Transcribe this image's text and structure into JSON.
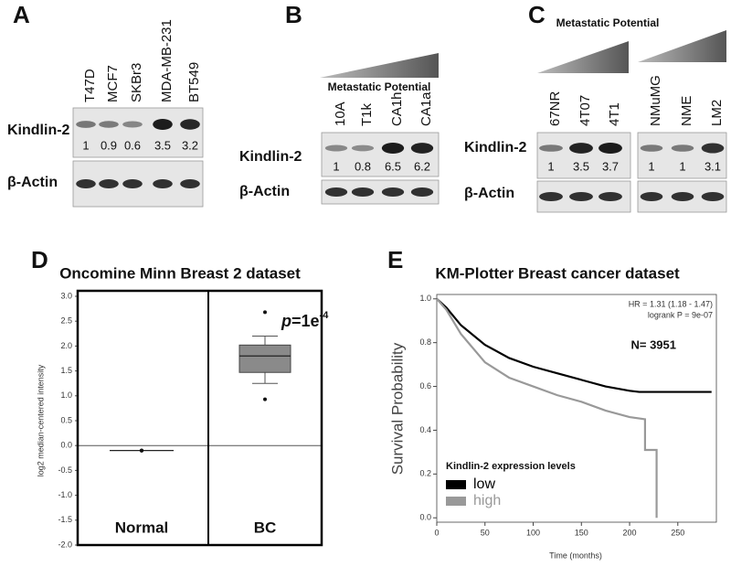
{
  "blots": [
    {
      "label": "A",
      "lanes": [
        "T47D",
        "MCF7",
        "SKBr3",
        "MDA-MB-231",
        "BT549"
      ],
      "rows": [
        "Kindlin-2",
        "β-Actin"
      ],
      "quant": [
        1,
        0.9,
        0.6,
        3.5,
        3.2
      ]
    },
    {
      "label": "B",
      "header": "Metastatic Potential",
      "lanes": [
        "10A",
        "T1k",
        "CA1h",
        "CA1a"
      ],
      "rows": [
        "Kindlin-2",
        "β-Actin"
      ],
      "quant": [
        1,
        0.8,
        6.5,
        6.2
      ]
    },
    {
      "label": "C",
      "header": "Metastatic Potential",
      "lanes": [
        "67NR",
        "4T07",
        "4T1",
        "NMuMG",
        "NME",
        "LM2"
      ],
      "rows": [
        "Kindlin-2",
        "β-Actin"
      ],
      "quant": [
        1,
        3.5,
        3.7,
        1,
        1,
        3.1
      ]
    }
  ],
  "chart_data": [
    {
      "type": "box",
      "panel_label": "D",
      "title": "Oncomine Minn Breast 2 dataset",
      "ylabel": "log2 median-centered intensity",
      "categories": [
        "Normal",
        "BC"
      ],
      "boxes": [
        {
          "min": -0.1,
          "q1": -0.1,
          "median": -0.1,
          "q3": -0.1,
          "max": -0.1,
          "outliers": []
        },
        {
          "min": 1.25,
          "q1": 1.47,
          "median": 1.8,
          "q3": 2.02,
          "max": 2.2,
          "outliers": [
            2.68,
            0.93
          ]
        }
      ],
      "annotation": {
        "p": "p",
        "eq": "=1e",
        "exp": "-4"
      },
      "color": "#8a8a8a",
      "ylim": [
        -2.0,
        3.0
      ],
      "yticks": [
        {
          "value": -2,
          "label": "-2.0"
        },
        {
          "value": -1.5,
          "label": "-1.5"
        },
        {
          "value": -1,
          "label": "-1.0"
        },
        {
          "value": -0.5,
          "label": "-0.5"
        },
        {
          "value": 0,
          "label": "0.0"
        },
        {
          "value": 0.5,
          "label": "0.5"
        },
        {
          "value": 1,
          "label": "1.0"
        },
        {
          "value": 1.5,
          "label": "1.5"
        },
        {
          "value": 2,
          "label": "2.0"
        },
        {
          "value": 2.5,
          "label": "2.5"
        },
        {
          "value": 3,
          "label": "3.0"
        }
      ]
    },
    {
      "type": "line",
      "panel_label": "E",
      "title": "KM-Plotter Breast cancer dataset",
      "xlabel": "Time (months)",
      "ylabel": "Survival Probability",
      "annotations": [
        "HR = 1.31 (1.18 - 1.47)",
        "logrank P = 9e-07",
        "N= 3951"
      ],
      "legend_title": "Kindlin-2 expression levels",
      "series": [
        {
          "name": "low",
          "color": "#000000",
          "x": [
            0,
            10,
            25,
            50,
            75,
            100,
            125,
            150,
            175,
            200,
            210,
            285
          ],
          "values": [
            1.0,
            0.96,
            0.88,
            0.79,
            0.73,
            0.69,
            0.66,
            0.63,
            0.6,
            0.58,
            0.575,
            0.575
          ]
        },
        {
          "name": "high",
          "color": "#999999",
          "x": [
            0,
            10,
            25,
            50,
            75,
            100,
            125,
            150,
            175,
            200,
            216,
            216,
            228,
            228
          ],
          "values": [
            1.0,
            0.95,
            0.84,
            0.71,
            0.64,
            0.6,
            0.56,
            0.53,
            0.49,
            0.46,
            0.45,
            0.31,
            0.31,
            0.0
          ]
        }
      ],
      "xlim": [
        0,
        290
      ],
      "ylim": [
        -0.02,
        1.02
      ],
      "xticks": [
        0,
        50,
        100,
        150,
        200,
        250
      ],
      "yticks": [
        {
          "value": 0,
          "label": "0.0"
        },
        {
          "value": 0.2,
          "label": "0.2"
        },
        {
          "value": 0.4,
          "label": "0.4"
        },
        {
          "value": 0.6,
          "label": "0.6"
        },
        {
          "value": 0.8,
          "label": "0.8"
        },
        {
          "value": 1,
          "label": "1.0"
        }
      ]
    }
  ]
}
